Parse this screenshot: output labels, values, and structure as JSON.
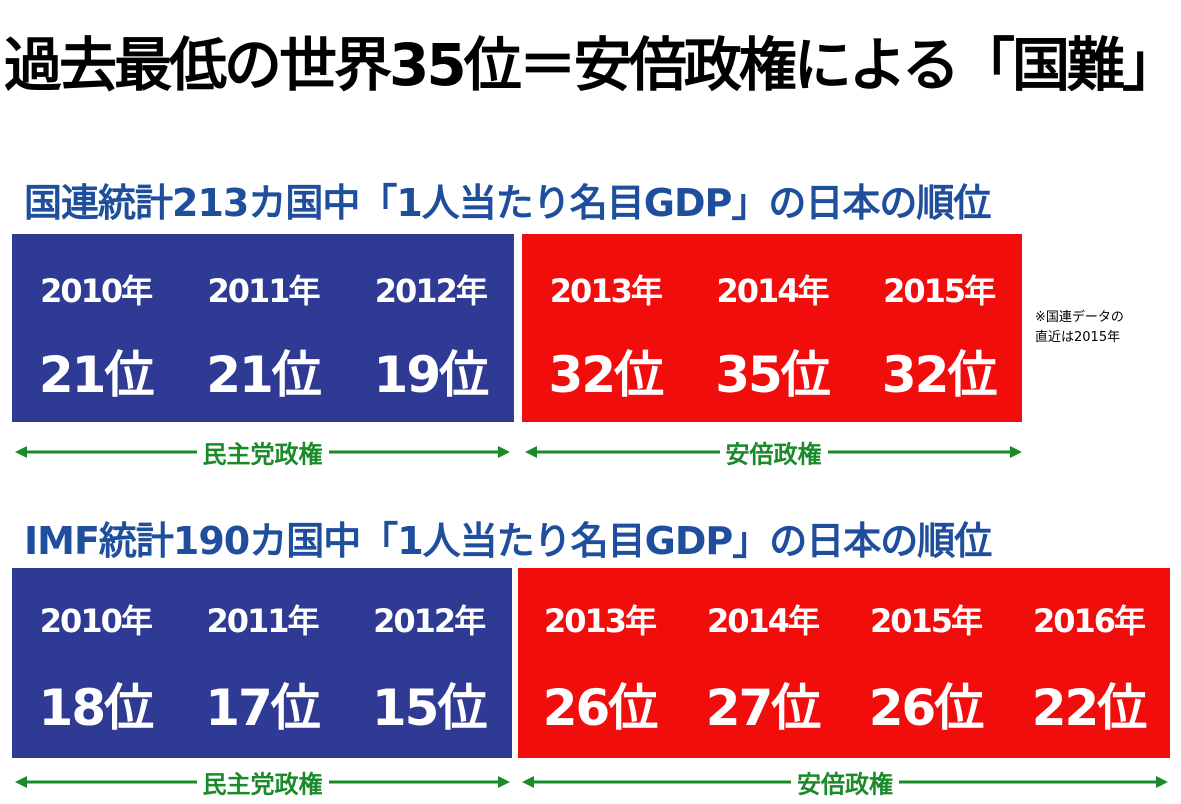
{
  "title": "過去最低の世界35位＝安倍政権による「国難」",
  "sections": [
    {
      "heading": "国連統計213カ国中「1人当たり名目GDP」の日本の順位",
      "note": [
        "※国連データの",
        "直近は2015年"
      ],
      "groups": [
        {
          "label": "民主党政権",
          "items": [
            {
              "year": "2010年",
              "rank": "21位"
            },
            {
              "year": "2011年",
              "rank": "21位"
            },
            {
              "year": "2012年",
              "rank": "19位"
            }
          ]
        },
        {
          "label": "安倍政権",
          "items": [
            {
              "year": "2013年",
              "rank": "32位"
            },
            {
              "year": "2014年",
              "rank": "35位"
            },
            {
              "year": "2015年",
              "rank": "32位"
            }
          ]
        }
      ]
    },
    {
      "heading": "IMF統計190カ国中「1人当たり名目GDP」の日本の順位",
      "groups": [
        {
          "label": "民主党政権",
          "items": [
            {
              "year": "2010年",
              "rank": "18位"
            },
            {
              "year": "2011年",
              "rank": "17位"
            },
            {
              "year": "2012年",
              "rank": "15位"
            }
          ]
        },
        {
          "label": "安倍政権",
          "items": [
            {
              "year": "2013年",
              "rank": "26位"
            },
            {
              "year": "2014年",
              "rank": "27位"
            },
            {
              "year": "2015年",
              "rank": "26位"
            },
            {
              "year": "2016年",
              "rank": "22位"
            }
          ]
        }
      ]
    }
  ]
}
